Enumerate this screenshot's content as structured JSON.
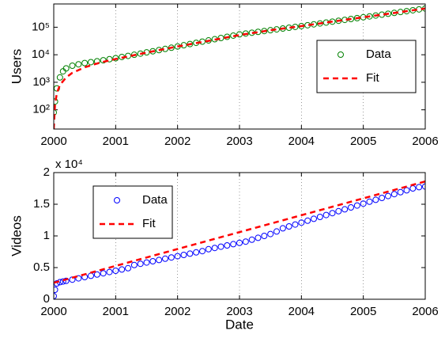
{
  "chart_data": [
    {
      "type": "line",
      "ylabel": "Users",
      "ylog": true,
      "grid": "x",
      "legend": "east",
      "xlim": [
        2000,
        2006
      ],
      "xticks": [
        2000,
        2001,
        2002,
        2003,
        2004,
        2005,
        2006
      ],
      "ylim": [
        20,
        700000
      ],
      "yticks": [
        {
          "value": 100,
          "label": "10²"
        },
        {
          "value": 1000,
          "label": "10³"
        },
        {
          "value": 10000,
          "label": "10⁴"
        },
        {
          "value": 100000,
          "label": "10⁵"
        }
      ],
      "x": [
        2000,
        2000.02,
        2000.05,
        2000.1,
        2000.15,
        2000.2,
        2000.3,
        2000.4,
        2000.5,
        2000.6,
        2000.7,
        2000.8,
        2000.9,
        2001,
        2001.1,
        2001.2,
        2001.3,
        2001.4,
        2001.5,
        2001.6,
        2001.7,
        2001.8,
        2001.9,
        2002,
        2002.1,
        2002.2,
        2002.3,
        2002.4,
        2002.5,
        2002.6,
        2002.7,
        2002.8,
        2002.9,
        2003,
        2003.1,
        2003.2,
        2003.3,
        2003.4,
        2003.5,
        2003.6,
        2003.7,
        2003.8,
        2003.9,
        2004,
        2004.1,
        2004.2,
        2004.3,
        2004.4,
        2004.5,
        2004.6,
        2004.7,
        2004.8,
        2004.9,
        2005,
        2005.1,
        2005.2,
        2005.3,
        2005.4,
        2005.5,
        2005.6,
        2005.7,
        2005.8,
        2005.9,
        2006
      ],
      "series": [
        {
          "name": "Data",
          "color": "#008000",
          "style": "markers",
          "values": [
            80,
            200,
            600,
            1500,
            2500,
            3200,
            4000,
            4500,
            5000,
            5400,
            5800,
            6300,
            6900,
            7500,
            8300,
            9100,
            10000,
            11000,
            12200,
            13400,
            14800,
            16300,
            18000,
            20000,
            22100,
            24500,
            27100,
            30000,
            33200,
            36700,
            40600,
            44900,
            49700,
            55000,
            59000,
            63200,
            67800,
            72700,
            77900,
            83500,
            89500,
            96000,
            102900,
            110000,
            118500,
            127600,
            137400,
            148000,
            159400,
            171700,
            184900,
            199100,
            214500,
            230000,
            247500,
            266300,
            286500,
            308300,
            331700,
            356900,
            384000,
            413200,
            444600,
            480000
          ]
        },
        {
          "name": "Fit",
          "color": "#ff0000",
          "style": "dashed",
          "x": [
            2000,
            2000.02,
            2000.05,
            2000.1,
            2000.2,
            2000.3,
            2000.5,
            2000.75,
            2001,
            2001.5,
            2002,
            2002.5,
            2003,
            2003.5,
            2004,
            2004.5,
            2005,
            2005.5,
            2006
          ],
          "values": [
            20,
            150,
            400,
            800,
            1500,
            2200,
            3500,
            5200,
            7000,
            12000,
            20000,
            32000,
            52000,
            78000,
            110000,
            160000,
            230000,
            330000,
            480000
          ]
        }
      ]
    },
    {
      "type": "line",
      "ylabel": "Videos",
      "xlabel": "Date",
      "multiplier": "x 10⁴",
      "grid": "x",
      "legend": "northwest",
      "xlim": [
        2000,
        2006
      ],
      "xticks": [
        2000,
        2001,
        2002,
        2003,
        2004,
        2005,
        2006
      ],
      "ylim": [
        0,
        2
      ],
      "yticks": [
        0,
        0.5,
        1,
        1.5,
        2
      ],
      "x": [
        2000,
        2000.02,
        2000.05,
        2000.1,
        2000.15,
        2000.2,
        2000.3,
        2000.4,
        2000.5,
        2000.6,
        2000.7,
        2000.8,
        2000.9,
        2001,
        2001.1,
        2001.2,
        2001.3,
        2001.4,
        2001.5,
        2001.6,
        2001.7,
        2001.8,
        2001.9,
        2002,
        2002.1,
        2002.2,
        2002.3,
        2002.4,
        2002.5,
        2002.6,
        2002.7,
        2002.8,
        2002.9,
        2003,
        2003.1,
        2003.2,
        2003.3,
        2003.4,
        2003.5,
        2003.6,
        2003.7,
        2003.8,
        2003.9,
        2004,
        2004.1,
        2004.2,
        2004.3,
        2004.4,
        2004.5,
        2004.6,
        2004.7,
        2004.8,
        2004.9,
        2005,
        2005.1,
        2005.2,
        2005.3,
        2005.4,
        2005.5,
        2005.6,
        2005.7,
        2005.8,
        2005.9,
        2006
      ],
      "series": [
        {
          "name": "Data",
          "color": "#0000ff",
          "style": "markers",
          "values": [
            0.05,
            0.15,
            0.25,
            0.27,
            0.28,
            0.29,
            0.31,
            0.33,
            0.35,
            0.37,
            0.39,
            0.41,
            0.43,
            0.45,
            0.47,
            0.49,
            0.54,
            0.56,
            0.58,
            0.6,
            0.62,
            0.64,
            0.66,
            0.68,
            0.7,
            0.72,
            0.74,
            0.76,
            0.79,
            0.81,
            0.83,
            0.85,
            0.87,
            0.89,
            0.91,
            0.94,
            0.97,
            1.0,
            1.03,
            1.07,
            1.12,
            1.15,
            1.18,
            1.21,
            1.24,
            1.27,
            1.3,
            1.33,
            1.36,
            1.39,
            1.42,
            1.45,
            1.48,
            1.51,
            1.54,
            1.57,
            1.6,
            1.63,
            1.66,
            1.69,
            1.72,
            1.75,
            1.77,
            1.78
          ]
        },
        {
          "name": "Fit",
          "color": "#ff0000",
          "style": "dashed",
          "x": [
            2000,
            2006
          ],
          "values": [
            0.26,
            1.86
          ]
        }
      ]
    }
  ]
}
